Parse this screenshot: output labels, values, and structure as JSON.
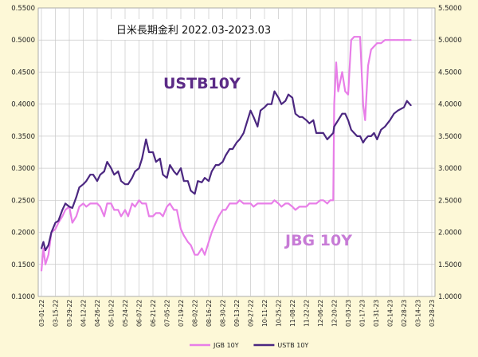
{
  "chart_data": {
    "type": "line",
    "title": "日米長期金利 2022.03-2023.03",
    "annotations": {
      "ustb": "USTB10Y",
      "jgb": "JBG 10Y"
    },
    "y_left": {
      "ylim": [
        0.1,
        0.55
      ],
      "ticks": [
        "0.1000",
        "0.1500",
        "0.2000",
        "0.2500",
        "0.3000",
        "0.3500",
        "0.4000",
        "0.4500",
        "0.5000",
        "0.5500"
      ]
    },
    "y_right": {
      "ylim": [
        1.0,
        5.5
      ],
      "ticks": [
        "1.0000",
        "1.5000",
        "2.0000",
        "2.5000",
        "3.0000",
        "3.5000",
        "4.0000",
        "4.5000",
        "5.0000",
        "5.5000"
      ]
    },
    "x_ticks": [
      "03-01-22",
      "03-15-22",
      "03-29-22",
      "04-12-22",
      "04-26-22",
      "05-10-22",
      "05-24-22",
      "06-07-22",
      "06-21-22",
      "07-05-22",
      "07-19-22",
      "08-02-22",
      "08-16-22",
      "08-30-22",
      "09-13-22",
      "09-27-22",
      "10-11-22",
      "10-25-22",
      "11-08-22",
      "11-22-22",
      "12-06-22",
      "12-20-22",
      "01-03-23",
      "01-17-23",
      "01-31-23",
      "02-14-23",
      "02-28-23",
      "03-14-23",
      "03-28-23"
    ],
    "grid": true,
    "legend_position": "bottom",
    "series": [
      {
        "name": "JGB 10Y",
        "axis": "left",
        "color": "#e87ee8",
        "points": [
          [
            "03-01-22",
            0.14
          ],
          [
            "03-03-22",
            0.175
          ],
          [
            "03-05-22",
            0.15
          ],
          [
            "03-08-22",
            0.165
          ],
          [
            "03-11-22",
            0.2
          ],
          [
            "03-15-22",
            0.205
          ],
          [
            "03-18-22",
            0.215
          ],
          [
            "03-22-22",
            0.225
          ],
          [
            "03-25-22",
            0.235
          ],
          [
            "03-29-22",
            0.24
          ],
          [
            "04-01-22",
            0.215
          ],
          [
            "04-05-22",
            0.225
          ],
          [
            "04-08-22",
            0.24
          ],
          [
            "04-12-22",
            0.245
          ],
          [
            "04-15-22",
            0.24
          ],
          [
            "04-19-22",
            0.245
          ],
          [
            "04-22-22",
            0.245
          ],
          [
            "04-26-22",
            0.245
          ],
          [
            "04-29-22",
            0.24
          ],
          [
            "05-03-22",
            0.225
          ],
          [
            "05-06-22",
            0.245
          ],
          [
            "05-10-22",
            0.245
          ],
          [
            "05-13-22",
            0.235
          ],
          [
            "05-17-22",
            0.235
          ],
          [
            "05-20-22",
            0.225
          ],
          [
            "05-24-22",
            0.235
          ],
          [
            "05-27-22",
            0.225
          ],
          [
            "05-31-22",
            0.245
          ],
          [
            "06-03-22",
            0.24
          ],
          [
            "06-07-22",
            0.25
          ],
          [
            "06-10-22",
            0.245
          ],
          [
            "06-14-22",
            0.245
          ],
          [
            "06-17-22",
            0.225
          ],
          [
            "06-21-22",
            0.225
          ],
          [
            "06-24-22",
            0.23
          ],
          [
            "06-28-22",
            0.23
          ],
          [
            "07-01-22",
            0.225
          ],
          [
            "07-05-22",
            0.24
          ],
          [
            "07-08-22",
            0.245
          ],
          [
            "07-12-22",
            0.235
          ],
          [
            "07-15-22",
            0.235
          ],
          [
            "07-19-22",
            0.205
          ],
          [
            "07-22-22",
            0.195
          ],
          [
            "07-26-22",
            0.185
          ],
          [
            "07-29-22",
            0.18
          ],
          [
            "08-02-22",
            0.165
          ],
          [
            "08-05-22",
            0.165
          ],
          [
            "08-09-22",
            0.175
          ],
          [
            "08-12-22",
            0.165
          ],
          [
            "08-16-22",
            0.185
          ],
          [
            "08-19-22",
            0.2
          ],
          [
            "08-23-22",
            0.215
          ],
          [
            "08-26-22",
            0.225
          ],
          [
            "08-30-22",
            0.235
          ],
          [
            "09-02-22",
            0.235
          ],
          [
            "09-06-22",
            0.245
          ],
          [
            "09-09-22",
            0.245
          ],
          [
            "09-13-22",
            0.245
          ],
          [
            "09-16-22",
            0.25
          ],
          [
            "09-20-22",
            0.245
          ],
          [
            "09-23-22",
            0.245
          ],
          [
            "09-27-22",
            0.245
          ],
          [
            "09-30-22",
            0.24
          ],
          [
            "10-04-22",
            0.245
          ],
          [
            "10-07-22",
            0.245
          ],
          [
            "10-11-22",
            0.245
          ],
          [
            "10-14-22",
            0.245
          ],
          [
            "10-18-22",
            0.245
          ],
          [
            "10-21-22",
            0.25
          ],
          [
            "10-25-22",
            0.245
          ],
          [
            "10-28-22",
            0.24
          ],
          [
            "11-01-22",
            0.245
          ],
          [
            "11-04-22",
            0.245
          ],
          [
            "11-08-22",
            0.24
          ],
          [
            "11-11-22",
            0.235
          ],
          [
            "11-15-22",
            0.24
          ],
          [
            "11-18-22",
            0.24
          ],
          [
            "11-22-22",
            0.24
          ],
          [
            "11-25-22",
            0.245
          ],
          [
            "11-29-22",
            0.245
          ],
          [
            "12-02-22",
            0.245
          ],
          [
            "12-06-22",
            0.25
          ],
          [
            "12-09-22",
            0.25
          ],
          [
            "12-13-22",
            0.245
          ],
          [
            "12-16-22",
            0.25
          ],
          [
            "12-19-22",
            0.25
          ],
          [
            "12-20-22",
            0.4
          ],
          [
            "12-22-22",
            0.465
          ],
          [
            "12-24-22",
            0.42
          ],
          [
            "12-28-22",
            0.45
          ],
          [
            "12-31-22",
            0.42
          ],
          [
            "01-03-23",
            0.415
          ],
          [
            "01-06-23",
            0.5
          ],
          [
            "01-09-23",
            0.505
          ],
          [
            "01-12-23",
            0.505
          ],
          [
            "01-15-23",
            0.505
          ],
          [
            "01-18-23",
            0.4
          ],
          [
            "01-20-23",
            0.375
          ],
          [
            "01-23-23",
            0.46
          ],
          [
            "01-26-23",
            0.485
          ],
          [
            "01-29-23",
            0.49
          ],
          [
            "02-01-23",
            0.495
          ],
          [
            "02-05-23",
            0.495
          ],
          [
            "02-09-23",
            0.5
          ],
          [
            "02-14-23",
            0.5
          ],
          [
            "02-18-23",
            0.5
          ],
          [
            "02-22-23",
            0.5
          ],
          [
            "02-28-23",
            0.5
          ],
          [
            "03-07-23",
            0.5
          ]
        ]
      },
      {
        "name": "USTB 10Y",
        "axis": "right",
        "color": "#4b2780",
        "points": [
          [
            "03-01-22",
            1.75
          ],
          [
            "03-03-22",
            1.85
          ],
          [
            "03-05-22",
            1.72
          ],
          [
            "03-08-22",
            1.8
          ],
          [
            "03-11-22",
            2.0
          ],
          [
            "03-15-22",
            2.15
          ],
          [
            "03-18-22",
            2.18
          ],
          [
            "03-22-22",
            2.35
          ],
          [
            "03-25-22",
            2.45
          ],
          [
            "03-29-22",
            2.4
          ],
          [
            "04-01-22",
            2.38
          ],
          [
            "04-05-22",
            2.55
          ],
          [
            "04-08-22",
            2.7
          ],
          [
            "04-12-22",
            2.75
          ],
          [
            "04-15-22",
            2.8
          ],
          [
            "04-19-22",
            2.9
          ],
          [
            "04-22-22",
            2.9
          ],
          [
            "04-26-22",
            2.8
          ],
          [
            "04-29-22",
            2.9
          ],
          [
            "05-03-22",
            2.95
          ],
          [
            "05-06-22",
            3.1
          ],
          [
            "05-10-22",
            3.0
          ],
          [
            "05-13-22",
            2.9
          ],
          [
            "05-17-22",
            2.95
          ],
          [
            "05-20-22",
            2.8
          ],
          [
            "05-24-22",
            2.75
          ],
          [
            "05-27-22",
            2.75
          ],
          [
            "05-31-22",
            2.85
          ],
          [
            "06-03-22",
            2.95
          ],
          [
            "06-07-22",
            3.0
          ],
          [
            "06-10-22",
            3.15
          ],
          [
            "06-14-22",
            3.45
          ],
          [
            "06-17-22",
            3.25
          ],
          [
            "06-21-22",
            3.25
          ],
          [
            "06-24-22",
            3.1
          ],
          [
            "06-28-22",
            3.15
          ],
          [
            "07-01-22",
            2.9
          ],
          [
            "07-05-22",
            2.85
          ],
          [
            "07-08-22",
            3.05
          ],
          [
            "07-12-22",
            2.95
          ],
          [
            "07-15-22",
            2.9
          ],
          [
            "07-19-22",
            3.0
          ],
          [
            "07-22-22",
            2.8
          ],
          [
            "07-26-22",
            2.8
          ],
          [
            "07-29-22",
            2.65
          ],
          [
            "08-02-22",
            2.6
          ],
          [
            "08-05-22",
            2.8
          ],
          [
            "08-09-22",
            2.78
          ],
          [
            "08-12-22",
            2.85
          ],
          [
            "08-16-22",
            2.8
          ],
          [
            "08-19-22",
            2.95
          ],
          [
            "08-23-22",
            3.05
          ],
          [
            "08-26-22",
            3.05
          ],
          [
            "08-30-22",
            3.1
          ],
          [
            "09-02-22",
            3.2
          ],
          [
            "09-06-22",
            3.3
          ],
          [
            "09-09-22",
            3.3
          ],
          [
            "09-13-22",
            3.4
          ],
          [
            "09-16-22",
            3.45
          ],
          [
            "09-20-22",
            3.55
          ],
          [
            "09-23-22",
            3.7
          ],
          [
            "09-27-22",
            3.9
          ],
          [
            "09-30-22",
            3.8
          ],
          [
            "10-04-22",
            3.65
          ],
          [
            "10-07-22",
            3.9
          ],
          [
            "10-11-22",
            3.95
          ],
          [
            "10-14-22",
            4.0
          ],
          [
            "10-18-22",
            4.0
          ],
          [
            "10-21-22",
            4.2
          ],
          [
            "10-25-22",
            4.1
          ],
          [
            "10-28-22",
            4.0
          ],
          [
            "11-01-22",
            4.05
          ],
          [
            "11-04-22",
            4.15
          ],
          [
            "11-08-22",
            4.1
          ],
          [
            "11-11-22",
            3.85
          ],
          [
            "11-15-22",
            3.8
          ],
          [
            "11-18-22",
            3.8
          ],
          [
            "11-22-22",
            3.75
          ],
          [
            "11-25-22",
            3.7
          ],
          [
            "11-29-22",
            3.75
          ],
          [
            "12-02-22",
            3.55
          ],
          [
            "12-06-22",
            3.55
          ],
          [
            "12-09-22",
            3.55
          ],
          [
            "12-13-22",
            3.45
          ],
          [
            "12-16-22",
            3.5
          ],
          [
            "12-19-22",
            3.55
          ],
          [
            "12-20-22",
            3.65
          ],
          [
            "12-22-22",
            3.7
          ],
          [
            "12-24-22",
            3.75
          ],
          [
            "12-28-22",
            3.85
          ],
          [
            "12-31-22",
            3.85
          ],
          [
            "01-03-23",
            3.75
          ],
          [
            "01-06-23",
            3.6
          ],
          [
            "01-09-23",
            3.55
          ],
          [
            "01-12-23",
            3.5
          ],
          [
            "01-15-23",
            3.5
          ],
          [
            "01-18-23",
            3.4
          ],
          [
            "01-20-23",
            3.45
          ],
          [
            "01-23-23",
            3.5
          ],
          [
            "01-26-23",
            3.5
          ],
          [
            "01-29-23",
            3.55
          ],
          [
            "02-01-23",
            3.45
          ],
          [
            "02-05-23",
            3.6
          ],
          [
            "02-09-23",
            3.65
          ],
          [
            "02-14-23",
            3.75
          ],
          [
            "02-18-23",
            3.85
          ],
          [
            "02-22-23",
            3.9
          ],
          [
            "02-28-23",
            3.95
          ],
          [
            "03-03-23",
            4.05
          ],
          [
            "03-07-23",
            3.98
          ]
        ]
      }
    ]
  }
}
